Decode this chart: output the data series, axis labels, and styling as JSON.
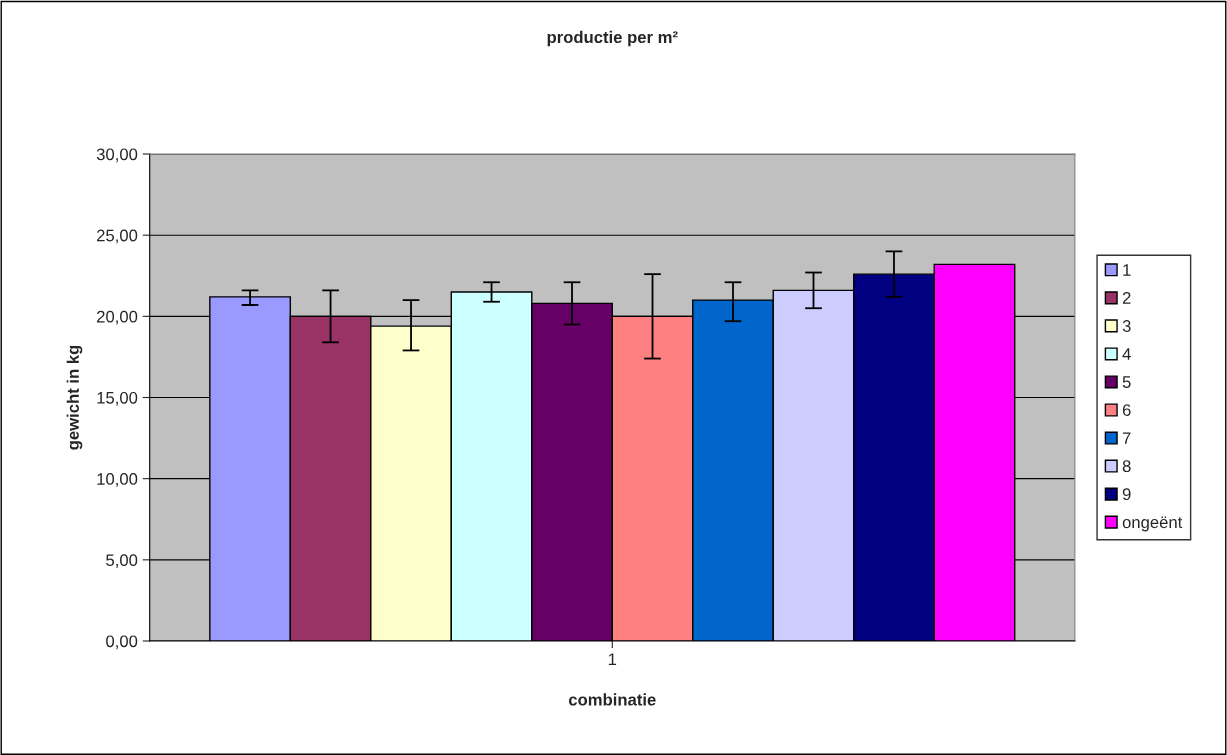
{
  "chart_data": {
    "type": "bar",
    "title": "productie per m²",
    "xlabel": "combinatie",
    "ylabel": "gewicht in kg",
    "categories": [
      "1"
    ],
    "series": [
      {
        "name": "1",
        "color": "#9999ff",
        "values": [
          21.2
        ],
        "errors": [
          [
            20.7,
            21.6
          ]
        ]
      },
      {
        "name": "2",
        "color": "#993366",
        "values": [
          20.0
        ],
        "errors": [
          [
            18.4,
            21.6
          ]
        ]
      },
      {
        "name": "3",
        "color": "#ffffcc",
        "values": [
          19.4
        ],
        "errors": [
          [
            17.9,
            21.0
          ]
        ]
      },
      {
        "name": "4",
        "color": "#ccffff",
        "values": [
          21.5
        ],
        "errors": [
          [
            20.9,
            22.1
          ]
        ]
      },
      {
        "name": "5",
        "color": "#660066",
        "values": [
          20.8
        ],
        "errors": [
          [
            19.5,
            22.1
          ]
        ]
      },
      {
        "name": "6",
        "color": "#ff8080",
        "values": [
          20.0
        ],
        "errors": [
          [
            17.4,
            22.6
          ]
        ]
      },
      {
        "name": "7",
        "color": "#0066cc",
        "values": [
          21.0
        ],
        "errors": [
          [
            19.7,
            22.1
          ]
        ]
      },
      {
        "name": "8",
        "color": "#ccccff",
        "values": [
          21.6
        ],
        "errors": [
          [
            20.5,
            22.7
          ]
        ]
      },
      {
        "name": "9",
        "color": "#000080",
        "values": [
          22.6
        ],
        "errors": [
          [
            21.2,
            24.0
          ]
        ]
      },
      {
        "name": "ongeënt",
        "color": "#ff00ff",
        "values": [
          23.2
        ]
      }
    ],
    "ylim": [
      0,
      30
    ],
    "yticks": [
      {
        "value": 0,
        "label": "0,00"
      },
      {
        "value": 5,
        "label": "5,00"
      },
      {
        "value": 10,
        "label": "10,00"
      },
      {
        "value": 15,
        "label": "15,00"
      },
      {
        "value": 20,
        "label": "20,00"
      },
      {
        "value": 25,
        "label": "25,00"
      },
      {
        "value": 30,
        "label": "30,00"
      }
    ],
    "grid": "y",
    "legend": "right"
  }
}
